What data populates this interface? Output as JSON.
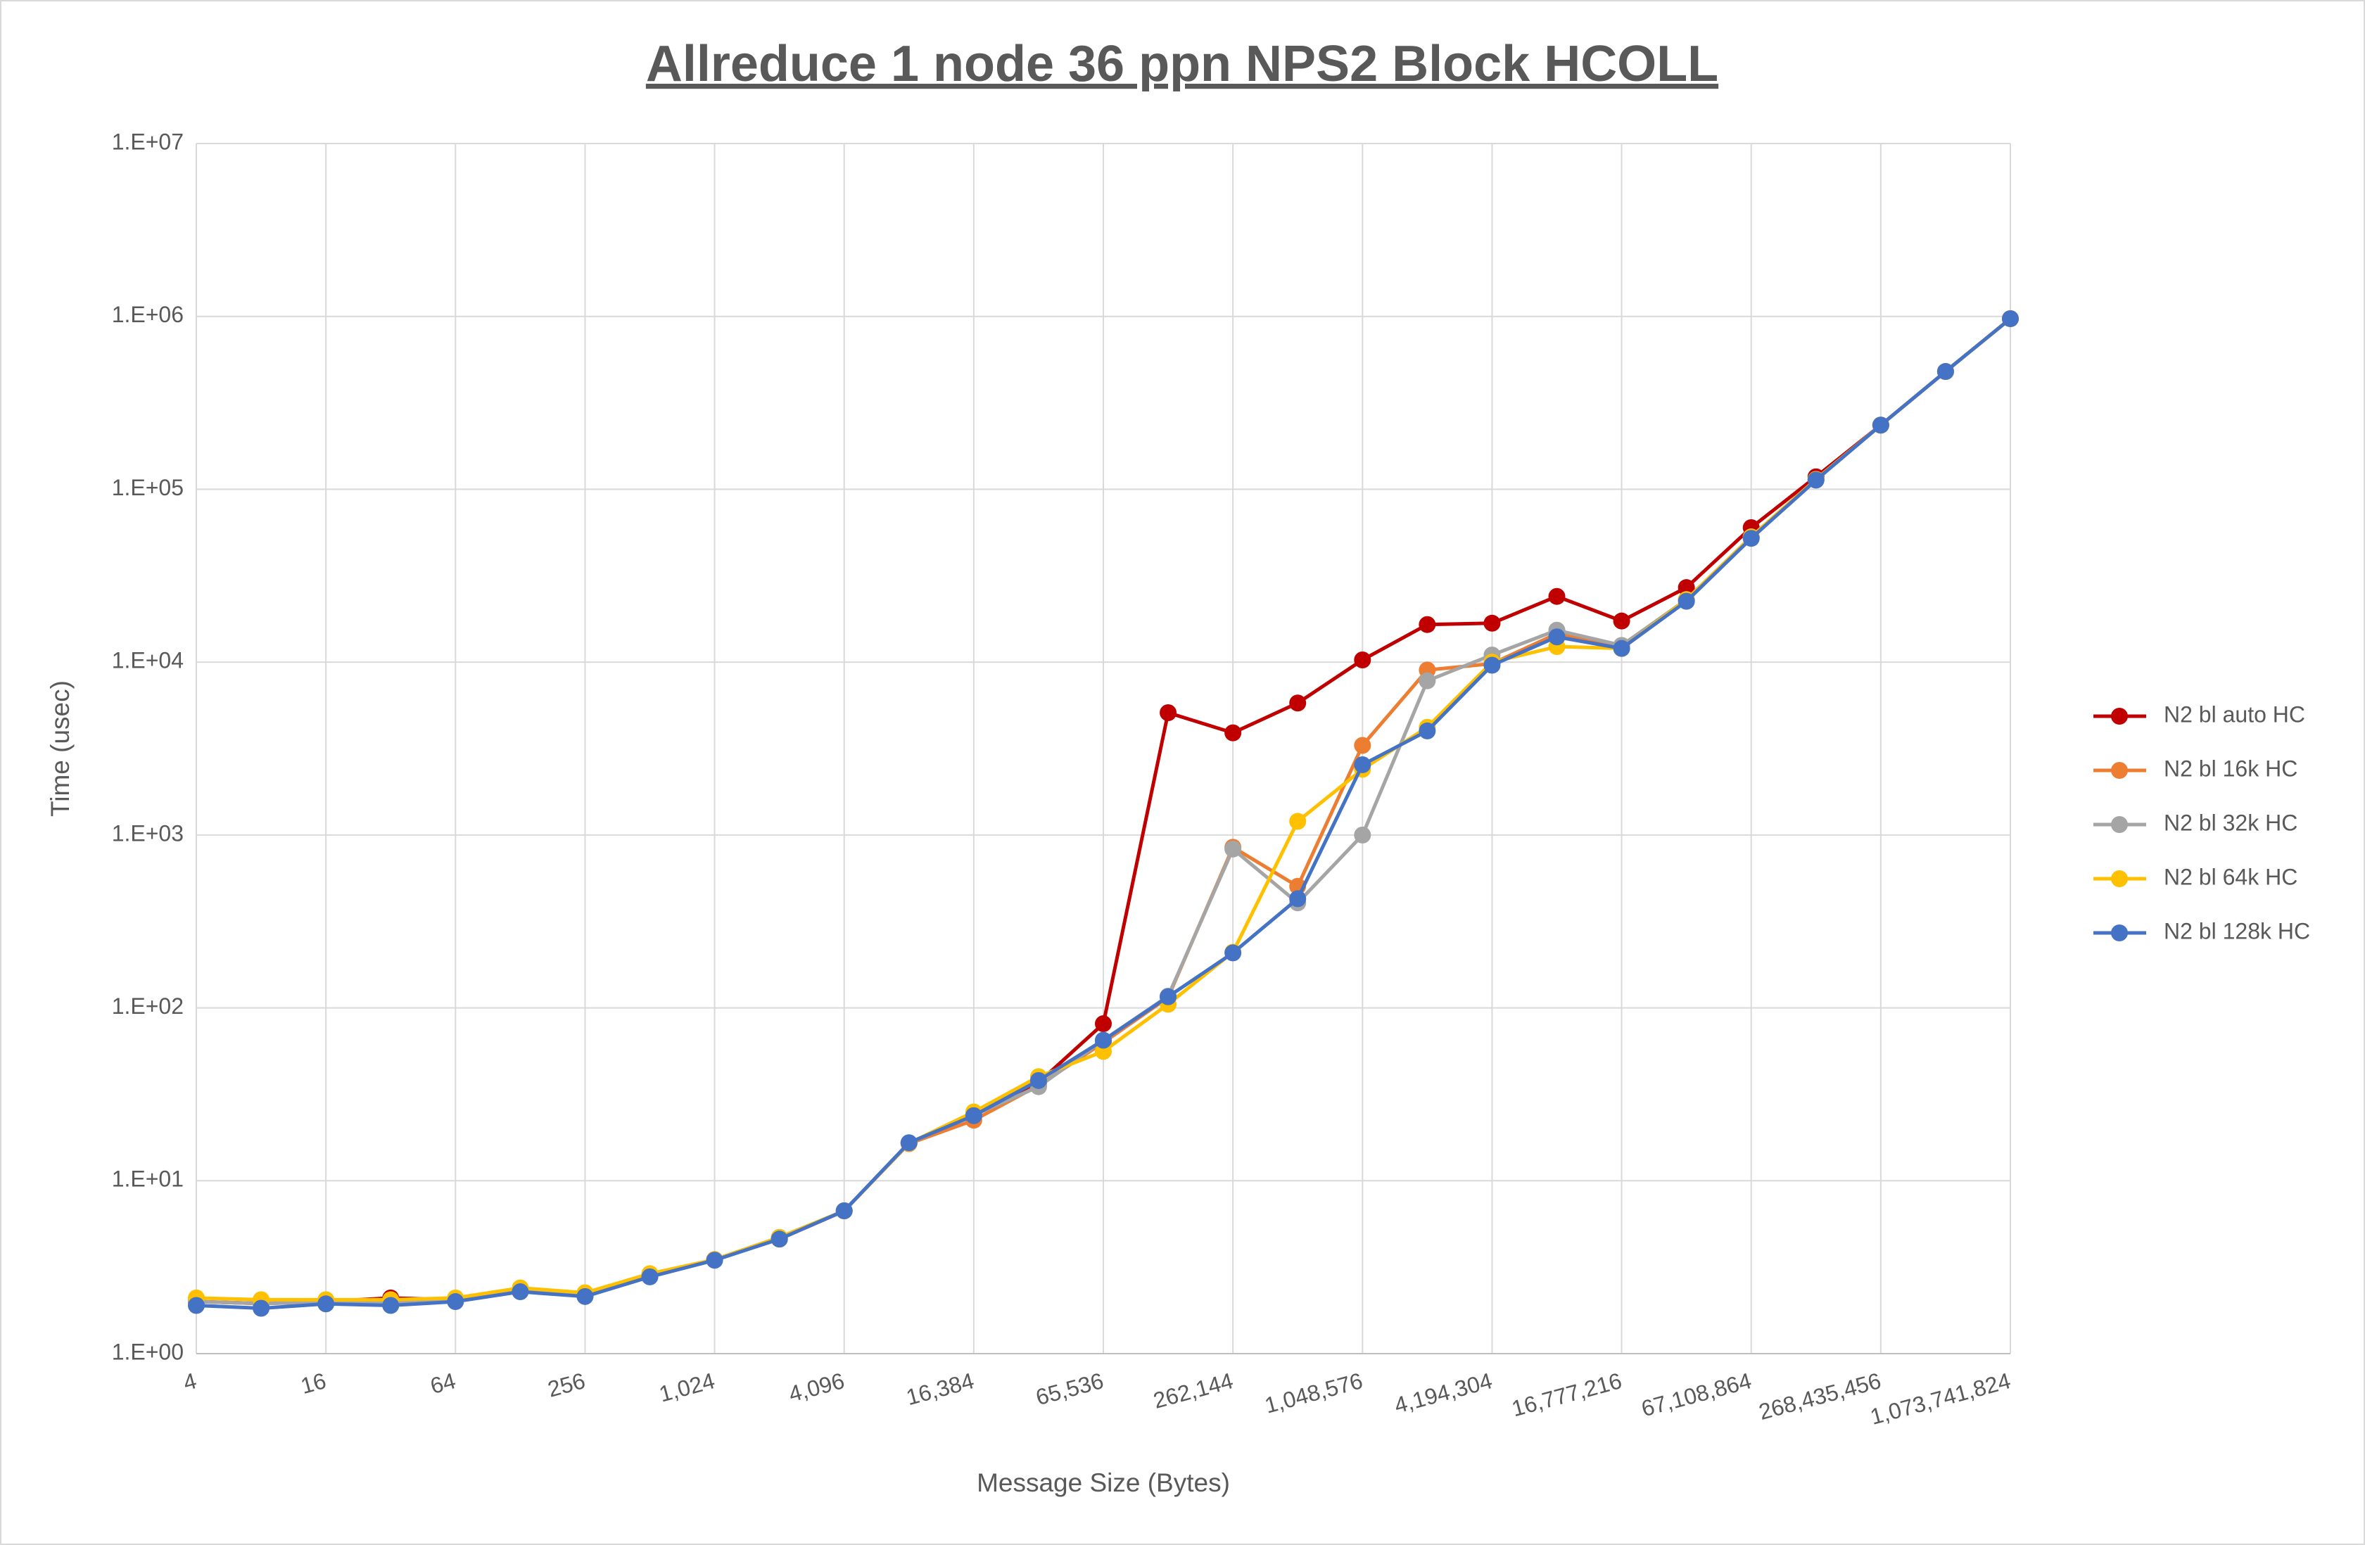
{
  "chart_data": {
    "type": "line",
    "title": "Allreduce 1 node 36 ppn NPS2 Block HCOLL",
    "x_label": "Message Size (Bytes)",
    "y_label": "Time (usec)",
    "categories": [
      "4",
      null,
      "16",
      null,
      "64",
      null,
      "256",
      null,
      "1,024",
      null,
      "4,096",
      null,
      "16,384",
      null,
      "65,536",
      null,
      "262,144",
      null,
      "1,048,576",
      null,
      "4,194,304",
      null,
      "16,777,216",
      null,
      "67,108,864",
      null,
      "268,435,456",
      null,
      "1,073,741,824"
    ],
    "yscale": "log",
    "ylim": [
      1,
      10000000
    ],
    "yticks": [
      {
        "value": 1,
        "label": "1.E+00"
      },
      {
        "value": 10,
        "label": "1.E+01"
      },
      {
        "value": 100,
        "label": "1.E+02"
      },
      {
        "value": 1000,
        "label": "1.E+03"
      },
      {
        "value": 10000,
        "label": "1.E+04"
      },
      {
        "value": 100000,
        "label": "1.E+05"
      },
      {
        "value": 1000000,
        "label": "1.E+06"
      },
      {
        "value": 10000000,
        "label": "1.E+07"
      }
    ],
    "grid": true,
    "legend": "right",
    "series": [
      {
        "name": "N2 bl auto HC",
        "color": "#c00000",
        "values": [
          2.0,
          1.95,
          2.0,
          2.1,
          2.05,
          2.3,
          2.15,
          2.8,
          3.5,
          4.6,
          6.7,
          16.5,
          24,
          37,
          81,
          5100,
          3900,
          5800,
          10300,
          16500,
          16800,
          24000,
          17300,
          27000,
          60000,
          118000,
          235000,
          480000,
          970000
        ]
      },
      {
        "name": "N2 bl 16k HC",
        "color": "#ed7d31",
        "values": [
          2.0,
          1.95,
          2.0,
          2.0,
          2.05,
          2.35,
          2.2,
          2.85,
          3.5,
          4.7,
          6.7,
          16.4,
          22.4,
          35.6,
          63,
          115,
          850,
          505,
          3300,
          9000,
          9800,
          14600,
          12400,
          23000,
          53000,
          114000,
          235000,
          480000,
          970000
        ]
      },
      {
        "name": "N2 bl 32k HC",
        "color": "#a5a5a5",
        "values": [
          2.0,
          1.95,
          1.98,
          1.98,
          2.05,
          2.35,
          2.2,
          2.85,
          3.5,
          4.7,
          6.7,
          16.5,
          24,
          35,
          65,
          117,
          830,
          405,
          1000,
          7800,
          11000,
          15300,
          12500,
          23000,
          53000,
          114000,
          235000,
          480000,
          970000
        ]
      },
      {
        "name": "N2 bl 64k HC",
        "color": "#ffc000",
        "values": [
          2.1,
          2.05,
          2.05,
          2.05,
          2.1,
          2.4,
          2.25,
          2.9,
          3.5,
          4.7,
          6.7,
          16.5,
          25,
          40,
          56,
          105,
          210,
          1200,
          2400,
          4200,
          10000,
          12300,
          12000,
          23000,
          53000,
          114000,
          235000,
          480000,
          970000
        ]
      },
      {
        "name": "N2 bl 128k HC",
        "color": "#4472c4",
        "values": [
          1.9,
          1.83,
          1.94,
          1.9,
          2.0,
          2.28,
          2.14,
          2.78,
          3.47,
          4.6,
          6.7,
          16.6,
          23.8,
          38,
          65,
          116,
          208,
          428,
          2550,
          4000,
          9600,
          14000,
          12000,
          22500,
          52000,
          113000,
          235000,
          480000,
          970000
        ]
      }
    ]
  }
}
